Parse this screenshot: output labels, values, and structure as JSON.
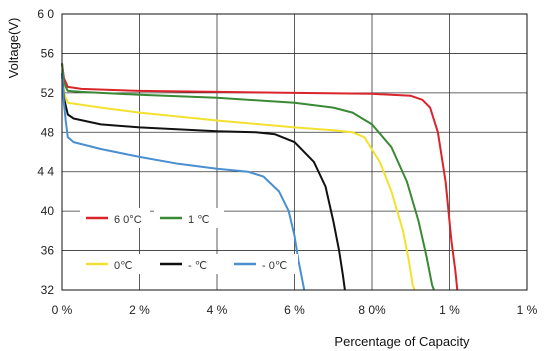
{
  "chart_data": {
    "type": "line",
    "title": "",
    "xlabel": "Percentage of Capacity",
    "ylabel": "Voltage(V)",
    "xlim": [
      0,
      120
    ],
    "ylim": [
      32,
      60
    ],
    "grid": true,
    "y_ticks": [
      {
        "value": 60,
        "label": "6 0"
      },
      {
        "value": 56,
        "label": "56"
      },
      {
        "value": 52,
        "label": "52"
      },
      {
        "value": 48,
        "label": "48"
      },
      {
        "value": 44,
        "label": "4 4"
      },
      {
        "value": 40,
        "label": "40"
      },
      {
        "value": 36,
        "label": "36"
      },
      {
        "value": 32,
        "label": "32"
      }
    ],
    "x_ticks": [
      {
        "value": 0,
        "label": "0 %"
      },
      {
        "value": 20,
        "label": "2  %"
      },
      {
        "value": 40,
        "label": "4  %"
      },
      {
        "value": 60,
        "label": "6  %"
      },
      {
        "value": 80,
        "label": "8 0%"
      },
      {
        "value": 100,
        "label": "1   %"
      },
      {
        "value": 120,
        "label": "1  %"
      }
    ],
    "series": [
      {
        "label": "6 0°C",
        "color": "#d9242b",
        "points": [
          [
            0,
            55
          ],
          [
            0.5,
            53.5
          ],
          [
            1.5,
            52.6
          ],
          [
            5,
            52.4
          ],
          [
            20,
            52.2
          ],
          [
            40,
            52.1
          ],
          [
            60,
            52
          ],
          [
            80,
            51.9
          ],
          [
            90,
            51.7
          ],
          [
            93,
            51.3
          ],
          [
            95,
            50.5
          ],
          [
            97,
            48
          ],
          [
            99,
            43
          ],
          [
            100.5,
            37
          ],
          [
            101.5,
            34
          ],
          [
            102,
            32
          ]
        ]
      },
      {
        "label": "1  ℃",
        "color": "#3a8a35",
        "points": [
          [
            0,
            55
          ],
          [
            0.5,
            53
          ],
          [
            1.5,
            52.2
          ],
          [
            5,
            52.1
          ],
          [
            20,
            51.8
          ],
          [
            40,
            51.5
          ],
          [
            60,
            51
          ],
          [
            70,
            50.5
          ],
          [
            75,
            50
          ],
          [
            80,
            48.8
          ],
          [
            85,
            46.5
          ],
          [
            89,
            43
          ],
          [
            92,
            39
          ],
          [
            94,
            35.5
          ],
          [
            95.5,
            32.5
          ],
          [
            96,
            32
          ]
        ]
      },
      {
        "label": "0℃",
        "color": "#f2e12e",
        "points": [
          [
            0,
            54
          ],
          [
            0.5,
            52
          ],
          [
            1.5,
            51
          ],
          [
            10,
            50.5
          ],
          [
            20,
            50
          ],
          [
            40,
            49.2
          ],
          [
            60,
            48.5
          ],
          [
            70,
            48.2
          ],
          [
            75,
            48
          ],
          [
            78,
            47.5
          ],
          [
            82,
            45
          ],
          [
            85,
            42
          ],
          [
            88,
            38
          ],
          [
            89.5,
            35
          ],
          [
            90.5,
            32.5
          ],
          [
            91,
            32
          ]
        ]
      },
      {
        "label": "-  ℃",
        "color": "#111111",
        "points": [
          [
            0,
            54
          ],
          [
            0.5,
            51.5
          ],
          [
            1.5,
            49.8
          ],
          [
            3,
            49.4
          ],
          [
            10,
            48.8
          ],
          [
            20,
            48.5
          ],
          [
            40,
            48.1
          ],
          [
            50,
            48
          ],
          [
            55,
            47.8
          ],
          [
            60,
            47
          ],
          [
            65,
            45
          ],
          [
            68,
            42.5
          ],
          [
            70,
            39
          ],
          [
            71.5,
            36
          ],
          [
            72.5,
            33.5
          ],
          [
            73,
            32
          ]
        ]
      },
      {
        "label": "-  0℃",
        "color": "#4a8fd0",
        "points": [
          [
            0,
            54
          ],
          [
            0.5,
            51
          ],
          [
            1,
            49
          ],
          [
            1.5,
            47.5
          ],
          [
            3,
            47
          ],
          [
            10,
            46.3
          ],
          [
            20,
            45.5
          ],
          [
            30,
            44.8
          ],
          [
            40,
            44.3
          ],
          [
            48,
            44
          ],
          [
            52,
            43.5
          ],
          [
            56,
            42
          ],
          [
            58.5,
            40
          ],
          [
            60,
            37.5
          ],
          [
            61,
            35
          ],
          [
            62,
            33
          ],
          [
            62.5,
            32
          ]
        ]
      }
    ]
  }
}
